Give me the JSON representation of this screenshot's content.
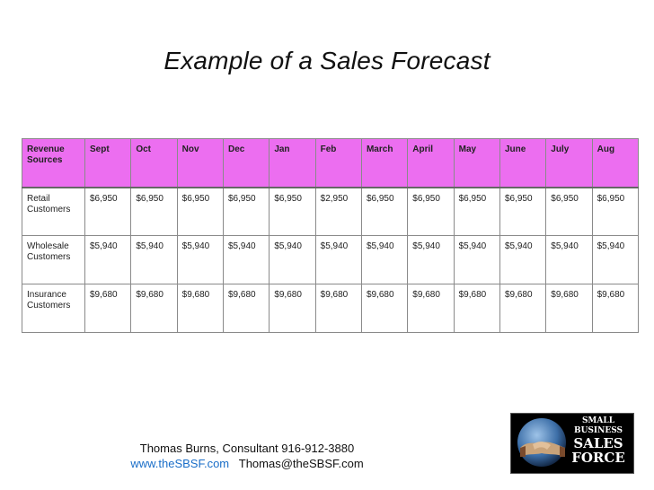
{
  "slide": {
    "title": "Example of a Sales Forecast"
  },
  "table": {
    "header": [
      "Revenue Sources",
      "Sept",
      "Oct",
      "Nov",
      "Dec",
      "Jan",
      "Feb",
      "March",
      "April",
      "May",
      "June",
      "July",
      "Aug"
    ],
    "rows": [
      {
        "label": "Retail Customers",
        "values": [
          "$6,950",
          "$6,950",
          "$6,950",
          "$6,950",
          "$6,950",
          "$2,950",
          "$6,950",
          "$6,950",
          "$6,950",
          "$6,950",
          "$6,950",
          "$6,950"
        ]
      },
      {
        "label": "Wholesale Customers",
        "values": [
          "$5,940",
          "$5,940",
          "$5,940",
          "$5,940",
          "$5,940",
          "$5,940",
          "$5,940",
          "$5,940",
          "$5,940",
          "$5,940",
          "$5,940",
          "$5,940"
        ]
      },
      {
        "label": "Insurance Customers",
        "values": [
          "$9,680",
          "$9,680",
          "$9,680",
          "$9,680",
          "$9,680",
          "$9,680",
          "$9,680",
          "$9,680",
          "$9,680",
          "$9,680",
          "$9,680",
          "$9,680"
        ]
      }
    ],
    "header_color": "#ec6ef0"
  },
  "footer": {
    "line1": "Thomas Burns, Consultant  916-912-3880",
    "website": "www.theSBSF.com",
    "email": "Thomas@theSBSF.com",
    "link_color": "#1a6ec8"
  },
  "logo": {
    "line1": "SMALL",
    "line2": "BUSINESS",
    "line3": "SALES",
    "line4": "FORCE",
    "icon": "handshake-globe-icon"
  }
}
